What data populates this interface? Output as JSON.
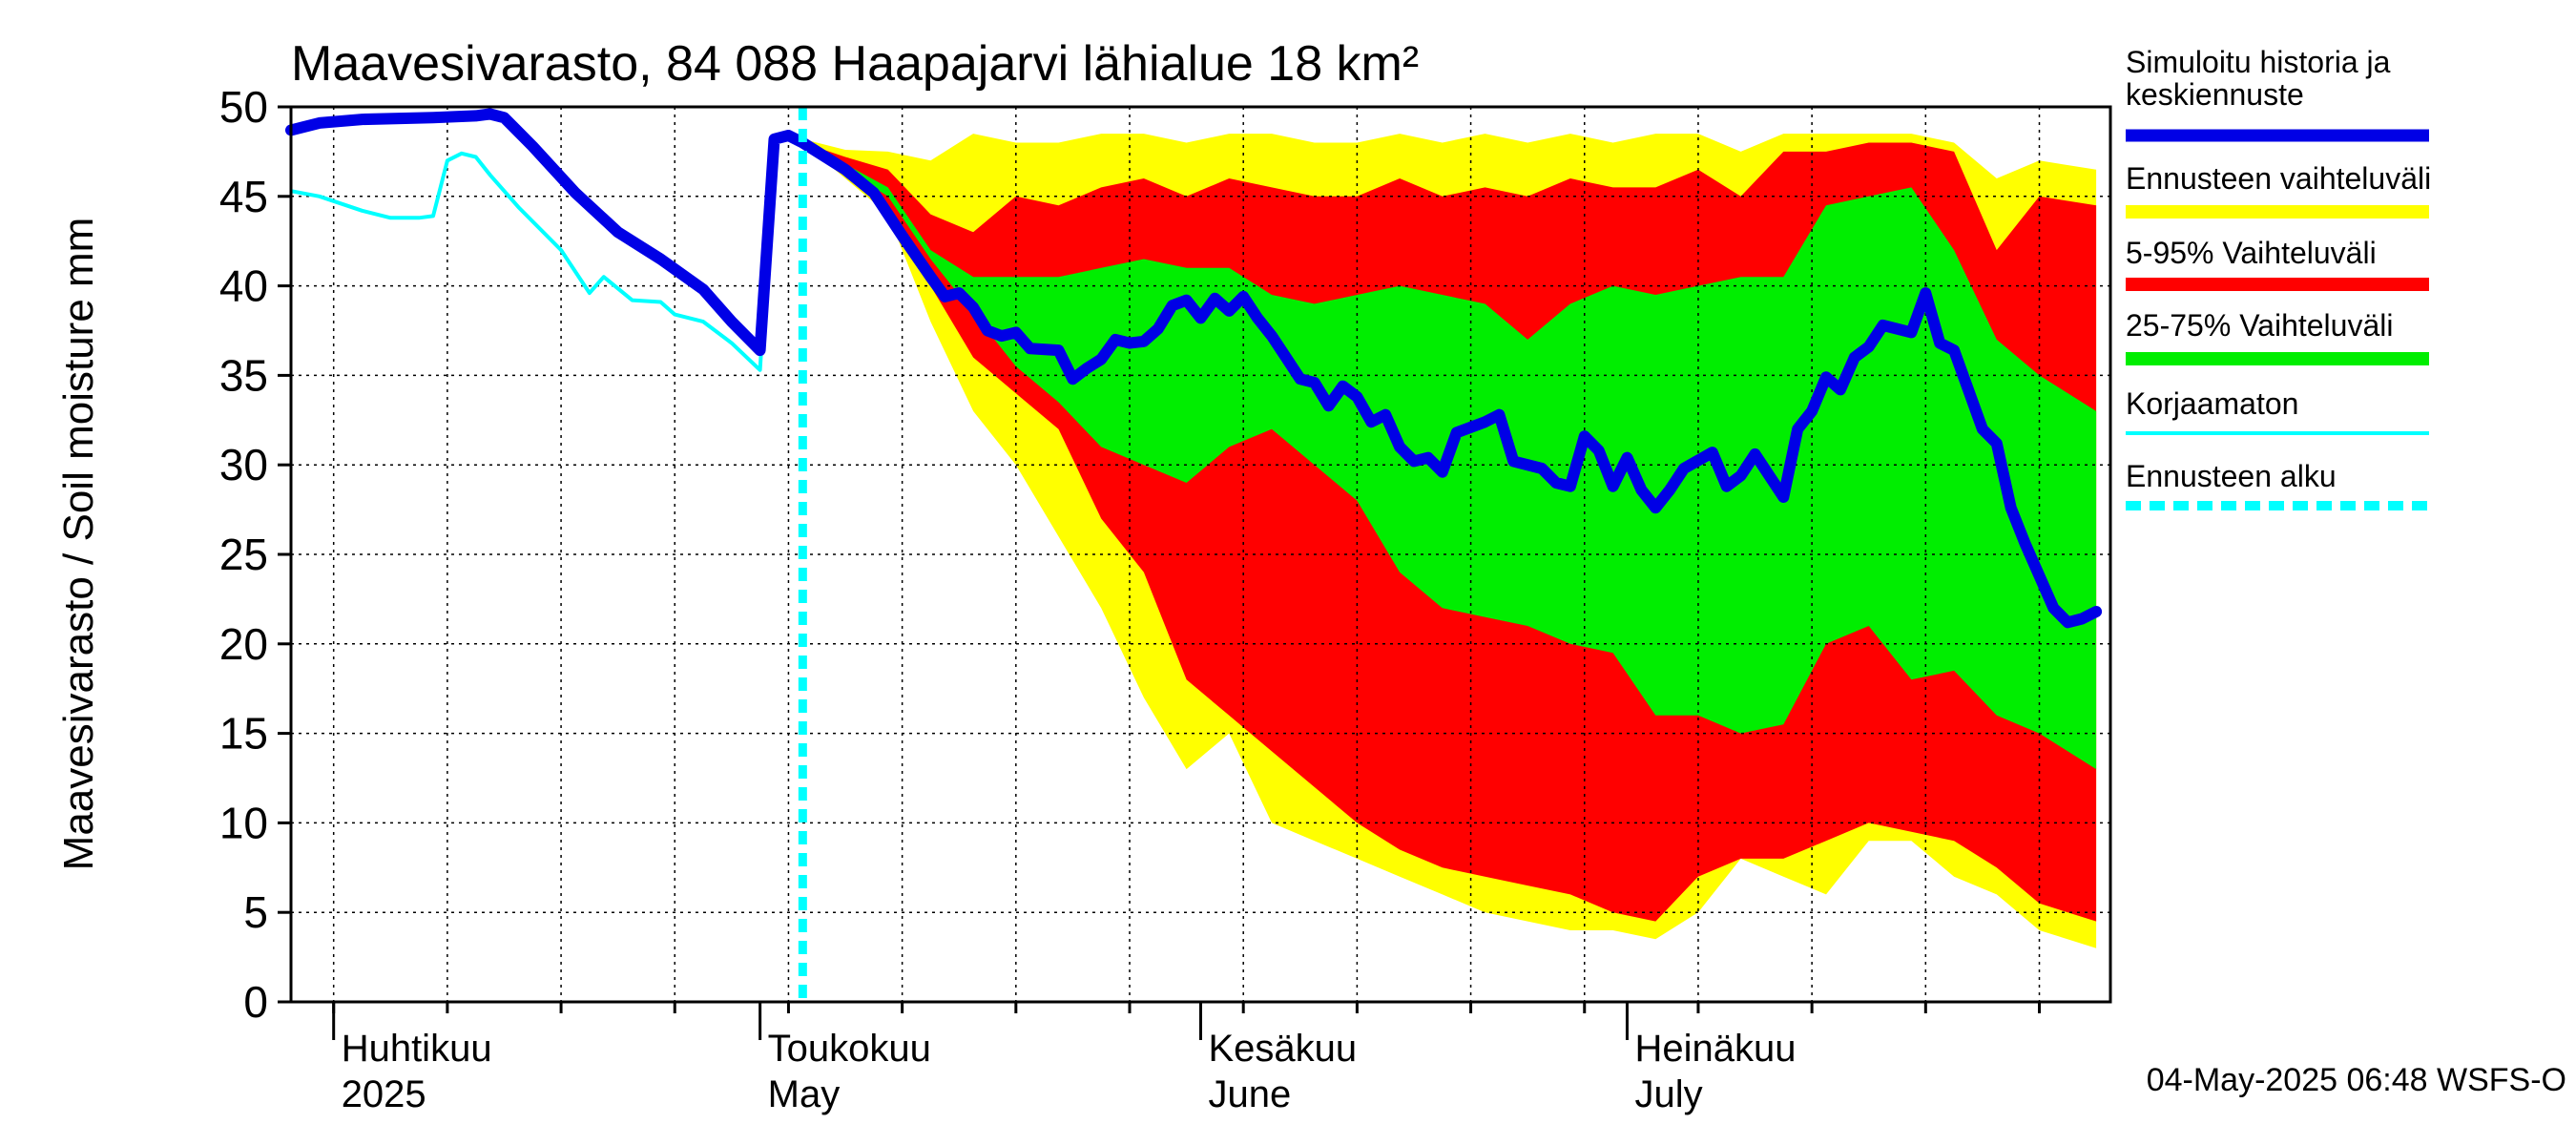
{
  "chart_data": {
    "type": "area",
    "title": "Maavesivarasto, 84 088 Haapajarvi lähialue 18 km²",
    "ylabel": "Maavesivarasto / Soil moisture   mm",
    "xlabel": "",
    "ylim": [
      0,
      50
    ],
    "yticks": [
      0,
      5,
      10,
      15,
      20,
      25,
      30,
      35,
      40,
      45,
      50
    ],
    "xlim": [
      "2025-03-29",
      "2025-08-04"
    ],
    "grid": true,
    "legend_position": "right",
    "months": [
      {
        "date": "2025-04-01",
        "line1": "Huhtikuu",
        "line2": "2025"
      },
      {
        "date": "2025-05-01",
        "line1": "Toukokuu",
        "line2": "May"
      },
      {
        "date": "2025-06-01",
        "line1": "Kesäkuu",
        "line2": "June"
      },
      {
        "date": "2025-07-01",
        "line1": "Heinäkuu",
        "line2": "July"
      }
    ],
    "forecast_start": "2025-05-04",
    "timestamp": "04-May-2025 06:48 WSFS-O",
    "colors": {
      "history": "#0000e6",
      "envelope": "#ffff00",
      "p5_95": "#ff0000",
      "p25_75": "#00ee00",
      "uncorrected": "#00ffff",
      "forecast_start": "#00ffff"
    },
    "legend": [
      {
        "label": "Simuloitu historia ja keskiennuste",
        "color": "#0000e6",
        "style": "thick"
      },
      {
        "label": "Ennusteen vaihteluväli",
        "color": "#ffff00",
        "style": "band"
      },
      {
        "label": "5-95% Vaihteluväli",
        "color": "#ff0000",
        "style": "band"
      },
      {
        "label": "25-75% Vaihteluväli",
        "color": "#00ee00",
        "style": "band"
      },
      {
        "label": "Korjaamaton",
        "color": "#00ffff",
        "style": "thin"
      },
      {
        "label": "Ennusteen alku",
        "color": "#00ffff",
        "style": "dashed"
      }
    ],
    "series": [
      {
        "name": "Simuloitu historia ja keskiennuste",
        "points": [
          [
            "2025-03-29",
            48.7
          ],
          [
            "2025-03-31",
            49.1
          ],
          [
            "2025-04-03",
            49.3
          ],
          [
            "2025-04-08",
            49.4
          ],
          [
            "2025-04-11",
            49.5
          ],
          [
            "2025-04-12",
            49.6
          ],
          [
            "2025-04-13",
            49.4
          ],
          [
            "2025-04-15",
            47.8
          ],
          [
            "2025-04-18",
            45.2
          ],
          [
            "2025-04-21",
            43.0
          ],
          [
            "2025-04-24",
            41.5
          ],
          [
            "2025-04-27",
            39.8
          ],
          [
            "2025-04-29",
            38.0
          ],
          [
            "2025-05-01",
            36.4
          ],
          [
            "2025-05-02",
            48.2
          ],
          [
            "2025-05-03",
            48.4
          ],
          [
            "2025-05-04",
            48.0
          ],
          [
            "2025-05-07",
            46.5
          ],
          [
            "2025-05-09",
            45.2
          ],
          [
            "2025-05-11",
            42.8
          ],
          [
            "2025-05-13",
            40.5
          ],
          [
            "2025-05-14",
            39.4
          ],
          [
            "2025-05-15",
            39.6
          ],
          [
            "2025-05-16",
            38.8
          ],
          [
            "2025-05-17",
            37.5
          ],
          [
            "2025-05-18",
            37.2
          ],
          [
            "2025-05-19",
            37.4
          ],
          [
            "2025-05-20",
            36.5
          ],
          [
            "2025-05-22",
            36.4
          ],
          [
            "2025-05-23",
            34.8
          ],
          [
            "2025-05-24",
            35.4
          ],
          [
            "2025-05-25",
            35.9
          ],
          [
            "2025-05-26",
            37.0
          ],
          [
            "2025-05-27",
            36.8
          ],
          [
            "2025-05-28",
            36.9
          ],
          [
            "2025-05-29",
            37.6
          ],
          [
            "2025-05-30",
            38.9
          ],
          [
            "2025-05-31",
            39.2
          ],
          [
            "2025-06-01",
            38.2
          ],
          [
            "2025-06-02",
            39.3
          ],
          [
            "2025-06-03",
            38.6
          ],
          [
            "2025-06-04",
            39.4
          ],
          [
            "2025-06-05",
            38.2
          ],
          [
            "2025-06-06",
            37.2
          ],
          [
            "2025-06-07",
            36.0
          ],
          [
            "2025-06-08",
            34.8
          ],
          [
            "2025-06-09",
            34.6
          ],
          [
            "2025-06-10",
            33.3
          ],
          [
            "2025-06-11",
            34.4
          ],
          [
            "2025-06-12",
            33.8
          ],
          [
            "2025-06-13",
            32.4
          ],
          [
            "2025-06-14",
            32.8
          ],
          [
            "2025-06-15",
            31.0
          ],
          [
            "2025-06-16",
            30.2
          ],
          [
            "2025-06-17",
            30.4
          ],
          [
            "2025-06-18",
            29.6
          ],
          [
            "2025-06-19",
            31.8
          ],
          [
            "2025-06-21",
            32.4
          ],
          [
            "2025-06-22",
            32.8
          ],
          [
            "2025-06-23",
            30.2
          ],
          [
            "2025-06-25",
            29.8
          ],
          [
            "2025-06-26",
            29.0
          ],
          [
            "2025-06-27",
            28.8
          ],
          [
            "2025-06-28",
            31.6
          ],
          [
            "2025-06-29",
            30.8
          ],
          [
            "2025-06-30",
            28.8
          ],
          [
            "2025-07-01",
            30.4
          ],
          [
            "2025-07-02",
            28.6
          ],
          [
            "2025-07-03",
            27.6
          ],
          [
            "2025-07-04",
            28.6
          ],
          [
            "2025-07-05",
            29.8
          ],
          [
            "2025-07-07",
            30.7
          ],
          [
            "2025-07-08",
            28.8
          ],
          [
            "2025-07-09",
            29.4
          ],
          [
            "2025-07-10",
            30.6
          ],
          [
            "2025-07-12",
            28.2
          ],
          [
            "2025-07-13",
            32.0
          ],
          [
            "2025-07-14",
            33.0
          ],
          [
            "2025-07-15",
            34.9
          ],
          [
            "2025-07-16",
            34.2
          ],
          [
            "2025-07-17",
            36.0
          ],
          [
            "2025-07-18",
            36.6
          ],
          [
            "2025-07-19",
            37.8
          ],
          [
            "2025-07-21",
            37.4
          ],
          [
            "2025-07-22",
            39.6
          ],
          [
            "2025-07-23",
            36.8
          ],
          [
            "2025-07-24",
            36.4
          ],
          [
            "2025-07-25",
            34.2
          ],
          [
            "2025-07-26",
            32.0
          ],
          [
            "2025-07-27",
            31.2
          ],
          [
            "2025-07-28",
            27.6
          ],
          [
            "2025-07-29",
            25.6
          ],
          [
            "2025-07-30",
            23.8
          ],
          [
            "2025-07-31",
            22.0
          ],
          [
            "2025-08-01",
            21.2
          ],
          [
            "2025-08-02",
            21.4
          ],
          [
            "2025-08-03",
            21.8
          ]
        ]
      },
      {
        "name": "Korjaamaton",
        "points": [
          [
            "2025-03-29",
            45.3
          ],
          [
            "2025-03-31",
            45.0
          ],
          [
            "2025-04-03",
            44.2
          ],
          [
            "2025-04-05",
            43.8
          ],
          [
            "2025-04-07",
            43.8
          ],
          [
            "2025-04-08",
            43.9
          ],
          [
            "2025-04-09",
            47.0
          ],
          [
            "2025-04-10",
            47.4
          ],
          [
            "2025-04-11",
            47.2
          ],
          [
            "2025-04-12",
            46.2
          ],
          [
            "2025-04-14",
            44.4
          ],
          [
            "2025-04-17",
            42.0
          ],
          [
            "2025-04-19",
            39.6
          ],
          [
            "2025-04-20",
            40.5
          ],
          [
            "2025-04-22",
            39.2
          ],
          [
            "2025-04-24",
            39.1
          ],
          [
            "2025-04-25",
            38.4
          ],
          [
            "2025-04-27",
            38.0
          ],
          [
            "2025-04-29",
            36.8
          ],
          [
            "2025-05-01",
            35.3
          ],
          [
            "2025-05-02",
            48.2
          ],
          [
            "2025-05-03",
            48.4
          ],
          [
            "2025-05-04",
            48.0
          ]
        ]
      }
    ],
    "bands": {
      "x": [
        "2025-05-04",
        "2025-05-07",
        "2025-05-10",
        "2025-05-13",
        "2025-05-16",
        "2025-05-19",
        "2025-05-22",
        "2025-05-25",
        "2025-05-28",
        "2025-05-31",
        "2025-06-03",
        "2025-06-06",
        "2025-06-09",
        "2025-06-12",
        "2025-06-15",
        "2025-06-18",
        "2025-06-21",
        "2025-06-24",
        "2025-06-27",
        "2025-06-30",
        "2025-07-03",
        "2025-07-06",
        "2025-07-09",
        "2025-07-12",
        "2025-07-15",
        "2025-07-18",
        "2025-07-21",
        "2025-07-24",
        "2025-07-27",
        "2025-07-30",
        "2025-08-03"
      ],
      "min": [
        48.0,
        46.0,
        44.0,
        38.0,
        33.0,
        30.0,
        26.0,
        22.0,
        17.0,
        13.0,
        15.0,
        10.0,
        9.0,
        8.0,
        7.0,
        6.0,
        5.0,
        4.5,
        4.0,
        4.0,
        3.5,
        5.0,
        8.0,
        7.0,
        6.0,
        9.0,
        9.0,
        7.0,
        6.0,
        4.0,
        3.0
      ],
      "p5": [
        48.0,
        46.2,
        44.5,
        40.0,
        36.0,
        34.0,
        32.0,
        27.0,
        24.0,
        18.0,
        16.0,
        14.0,
        12.0,
        10.0,
        8.5,
        7.5,
        7.0,
        6.5,
        6.0,
        5.0,
        4.5,
        7.0,
        8.0,
        8.0,
        9.0,
        10.0,
        9.5,
        9.0,
        7.5,
        5.5,
        4.5
      ],
      "p25": [
        48.0,
        46.5,
        45.0,
        41.5,
        38.5,
        35.5,
        33.5,
        31.0,
        30.0,
        29.0,
        31.0,
        32.0,
        30.0,
        28.0,
        24.0,
        22.0,
        21.5,
        21.0,
        20.0,
        19.5,
        16.0,
        16.0,
        15.0,
        15.5,
        20.0,
        21.0,
        18.0,
        18.5,
        16.0,
        15.0,
        13.0
      ],
      "p75": [
        48.0,
        46.8,
        45.5,
        42.0,
        40.5,
        40.5,
        40.5,
        41.0,
        41.5,
        41.0,
        41.0,
        39.5,
        39.0,
        39.5,
        40.0,
        39.5,
        39.0,
        37.0,
        39.0,
        40.0,
        39.5,
        40.0,
        40.5,
        40.5,
        44.5,
        45.0,
        45.5,
        42.0,
        37.0,
        35.0,
        33.0
      ],
      "p95": [
        48.0,
        47.2,
        46.5,
        44.0,
        43.0,
        45.0,
        44.5,
        45.5,
        46.0,
        45.0,
        46.0,
        45.5,
        45.0,
        45.0,
        46.0,
        45.0,
        45.5,
        45.0,
        46.0,
        45.5,
        45.5,
        46.5,
        45.0,
        47.5,
        47.5,
        48.0,
        48.0,
        47.5,
        42.0,
        45.0,
        44.5
      ],
      "max": [
        48.2,
        47.6,
        47.5,
        47.0,
        48.5,
        48.0,
        48.0,
        48.5,
        48.5,
        48.0,
        48.5,
        48.5,
        48.0,
        48.0,
        48.5,
        48.0,
        48.5,
        48.0,
        48.5,
        48.0,
        48.5,
        48.5,
        47.5,
        48.5,
        48.5,
        48.5,
        48.5,
        48.0,
        46.0,
        47.0,
        46.5
      ]
    }
  }
}
